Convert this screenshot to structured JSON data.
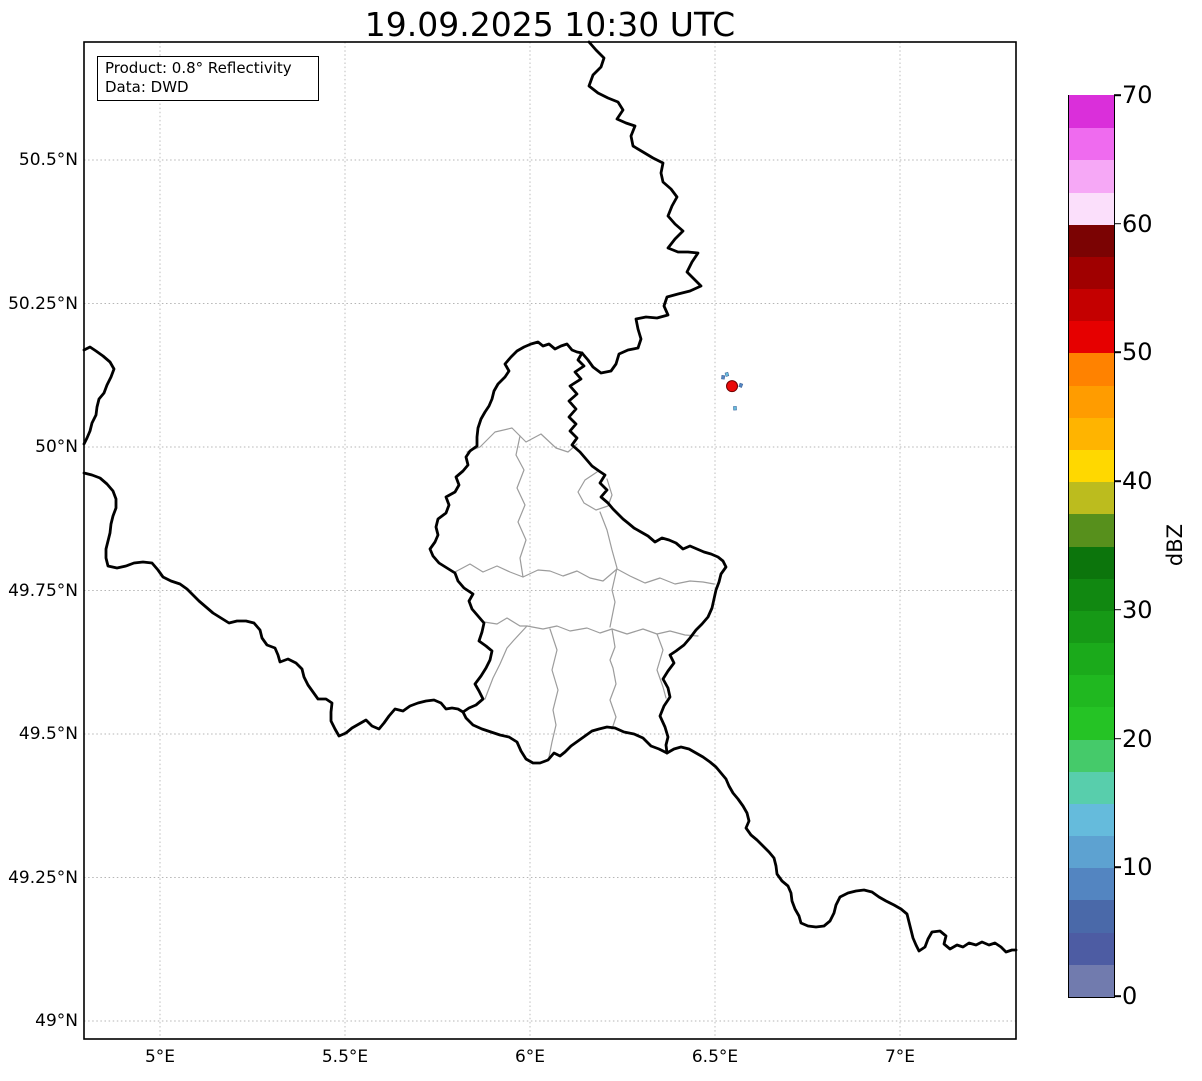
{
  "title": "19.09.2025 10:30 UTC",
  "annotation_box": {
    "line1": "Product: 0.8° Reflectivity",
    "line2": "Data: DWD"
  },
  "axes": {
    "x_ticks": [
      {
        "label": "5°E",
        "lon": 5.0
      },
      {
        "label": "5.5°E",
        "lon": 5.5
      },
      {
        "label": "6°E",
        "lon": 6.0
      },
      {
        "label": "6.5°E",
        "lon": 6.5
      },
      {
        "label": "7°E",
        "lon": 7.0
      }
    ],
    "y_ticks": [
      {
        "label": "50.5°N",
        "lat": 50.5
      },
      {
        "label": "50.25°N",
        "lat": 50.25
      },
      {
        "label": "50°N",
        "lat": 50.0
      },
      {
        "label": "49.75°N",
        "lat": 49.75
      },
      {
        "label": "49.5°N",
        "lat": 49.5
      },
      {
        "label": "49.25°N",
        "lat": 49.25
      },
      {
        "label": "49°N",
        "lat": 49.0
      }
    ]
  },
  "colorbar": {
    "label": "dBZ",
    "vmin": 0,
    "vmax": 70,
    "step": 2.5,
    "ticks": [
      0,
      10,
      20,
      30,
      40,
      50,
      60,
      70
    ],
    "colors_bottom_to_top": [
      "#717BAE",
      "#4D5CA3",
      "#4A69A9",
      "#5385C1",
      "#5DA2D1",
      "#65BBDC",
      "#58CEAC",
      "#45CA6A",
      "#25C325",
      "#20B820",
      "#1BAA1B",
      "#169916",
      "#118811",
      "#0C750C",
      "#57901C",
      "#BCBC1E",
      "#FFD800",
      "#FFB400",
      "#FF9C00",
      "#FF8200",
      "#E60000",
      "#C40000",
      "#A00000",
      "#7B0303",
      "#FBDFFB",
      "#F6A8F6",
      "#EF6BEF",
      "#DA2FDA"
    ]
  },
  "chart_data": {
    "type": "map",
    "title": "19.09.2025 10:30 UTC",
    "product": "0.8° Reflectivity",
    "data_source": "DWD",
    "colorbar_label": "dBZ",
    "colorbar_range": [
      0,
      70
    ],
    "map_extent": {
      "lon_min": 4.79,
      "lon_max": 7.31,
      "lat_min": 48.97,
      "lat_max": 50.71
    },
    "grid": "dotted graticule every 0.5° lon / 0.25° lat",
    "features": [
      "national borders of Belgium, Germany, France and Luxembourg (thick black)",
      "Luxembourg canton borders (thin gray)"
    ],
    "radar_echoes": [
      {
        "lon": 6.546,
        "lat": 50.106,
        "dbz_approx": 51,
        "shape": "filled red dot, ~11 px"
      },
      {
        "lon": 6.522,
        "lat": 50.122,
        "dbz_approx": 13,
        "shape": "tiny light-blue speck"
      },
      {
        "lon": 6.532,
        "lat": 50.127,
        "dbz_approx": 9,
        "shape": "tiny blue speck"
      },
      {
        "lon": 6.57,
        "lat": 50.108,
        "dbz_approx": 13,
        "shape": "tiny light-blue speck"
      },
      {
        "lon": 6.554,
        "lat": 50.068,
        "dbz_approx": 9,
        "shape": "tiny blue speck"
      }
    ]
  }
}
